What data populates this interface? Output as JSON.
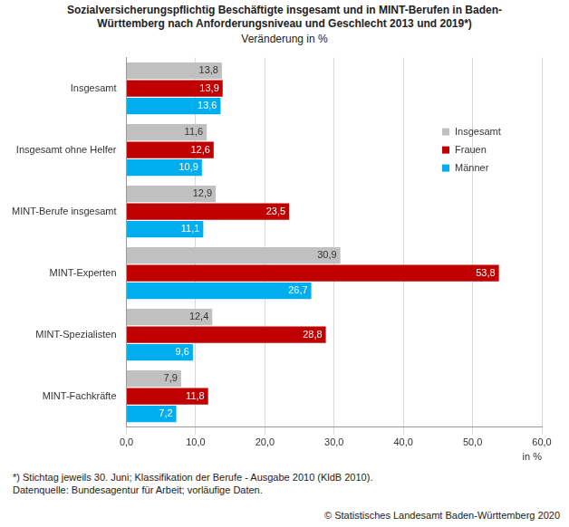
{
  "chart_data": {
    "type": "bar",
    "title": "Sozialversicherungspflichtig Beschäftigte insgesamt und in MINT-Berufen in Baden-Württemberg nach Anforderungsniveau und Geschlecht 2013 und 2019*)",
    "subtitle": "Veränderung in %",
    "x_label": "in %",
    "orientation": "horizontal",
    "categories": [
      "Insgesamt",
      "Insgesamt ohne Helfer",
      "MINT-Berufe insgesamt",
      "MINT-Experten",
      "MINT-Spezialisten",
      "MINT-Fachkräfte"
    ],
    "series": [
      {
        "name": "Insgesamt",
        "color": "#c0c0c0",
        "values": [
          13.8,
          11.6,
          12.9,
          30.9,
          12.4,
          7.9
        ],
        "value_labels": [
          "13,8",
          "11,6",
          "12,9",
          "30,9",
          "12,4",
          "7,9"
        ]
      },
      {
        "name": "Frauen",
        "color": "#c00000",
        "values": [
          13.9,
          12.6,
          23.5,
          53.8,
          28.8,
          11.8
        ],
        "value_labels": [
          "13,9",
          "12,6",
          "23,5",
          "53,8",
          "28,8",
          "11,8"
        ]
      },
      {
        "name": "Männer",
        "color": "#00aeef",
        "values": [
          13.6,
          10.9,
          11.1,
          26.7,
          9.6,
          7.2
        ],
        "value_labels": [
          "13,6",
          "10,9",
          "11,1",
          "26,7",
          "9,6",
          "7,2"
        ]
      }
    ],
    "xlim": [
      0,
      60
    ],
    "xticks": [
      {
        "value": 0,
        "label": "0,0"
      },
      {
        "value": 10,
        "label": "10,0"
      },
      {
        "value": 20,
        "label": "20,0"
      },
      {
        "value": 30,
        "label": "30,0"
      },
      {
        "value": 40,
        "label": "40,0"
      },
      {
        "value": 50,
        "label": "50,0"
      },
      {
        "value": 60,
        "label": "60,0"
      }
    ],
    "grid": true,
    "legend": "top-right",
    "data_labels": true,
    "footnotes": [
      "*) Stichtag jeweils 30. Juni; Klassifikation der Berufe - Ausgabe 2010 (KldB 2010).",
      "Datenquelle: Bundesagentur für Arbeit; vorläufige Daten."
    ],
    "copyright": "© Statistisches Landesamt Baden-Württemberg 2020"
  }
}
